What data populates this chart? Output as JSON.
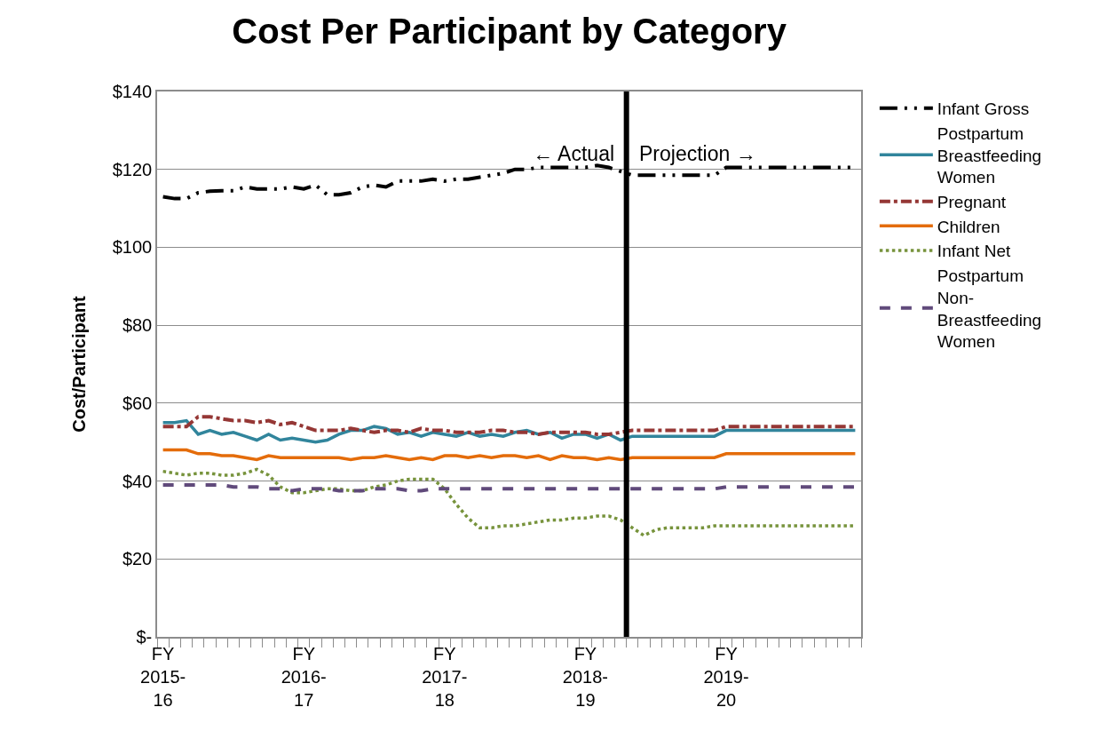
{
  "chart_data": {
    "type": "line",
    "title": "Cost Per Participant by Category",
    "ylabel": "Cost/Participant",
    "categories": [
      "FY\n2015-\n16",
      null,
      null,
      null,
      null,
      null,
      null,
      null,
      null,
      null,
      null,
      null,
      "FY\n2016-\n17",
      null,
      null,
      null,
      null,
      null,
      null,
      null,
      null,
      null,
      null,
      null,
      "FY\n2017-\n18",
      null,
      null,
      null,
      null,
      null,
      null,
      null,
      null,
      null,
      null,
      null,
      "FY\n2018-\n19",
      null,
      null,
      null,
      null,
      null,
      null,
      null,
      null,
      null,
      null,
      null,
      "FY\n2019-\n20",
      null,
      null,
      null,
      null,
      null,
      null,
      null,
      null,
      null,
      null,
      null
    ],
    "series": [
      {
        "name": "Infant Gross",
        "color": "#000000",
        "line_style": "long-dash-dot-dot",
        "values": [
          113,
          112.5,
          112.5,
          114,
          114.4,
          114.5,
          114.5,
          115.5,
          115,
          115,
          115,
          115.5,
          115,
          116,
          113.5,
          113.5,
          114,
          115.5,
          116,
          115.5,
          117,
          117,
          117,
          117.5,
          117,
          117.5,
          117.5,
          118,
          118.5,
          119,
          120,
          120,
          120.5,
          120.5,
          120.5,
          120.5,
          120.5,
          121,
          120.5,
          119.5,
          118.5,
          118.5,
          118.5,
          118.5,
          118.5,
          118.5,
          118.5,
          118.5,
          120.5,
          120.5,
          120.5,
          120.5,
          120.5,
          120.5,
          120.5,
          120.5,
          120.5,
          120.5,
          120.5,
          120.5
        ]
      },
      {
        "name": "Postpartum\nBreastfeeding\nWomen",
        "color": "#31859c",
        "line_style": "solid",
        "values": [
          55,
          55,
          55.5,
          52,
          53,
          52,
          52.5,
          51.5,
          50.5,
          52,
          50.5,
          51,
          50.5,
          50,
          50.5,
          52,
          53,
          53,
          54,
          53.5,
          52,
          52.5,
          51.5,
          52.5,
          52,
          51.5,
          52.5,
          51.5,
          52,
          51.5,
          52.5,
          53,
          52,
          52.5,
          51,
          52,
          52,
          51,
          52,
          50.5,
          51.5,
          51.5,
          51.5,
          51.5,
          51.5,
          51.5,
          51.5,
          51.5,
          53,
          53,
          53,
          53,
          53,
          53,
          53,
          53,
          53,
          53,
          53,
          53
        ]
      },
      {
        "name": "Pregnant",
        "color": "#953735",
        "line_style": "dash-dot",
        "values": [
          54,
          54,
          54,
          56.5,
          56.5,
          56,
          55.5,
          55.5,
          55,
          55.5,
          54.5,
          55,
          54,
          53,
          53,
          53,
          53.5,
          53,
          52.5,
          53,
          53,
          52.5,
          53.5,
          53,
          53,
          52.5,
          52.5,
          52.5,
          53,
          53,
          52.5,
          52.5,
          52,
          52.5,
          52.5,
          52.5,
          52.5,
          52,
          52,
          52.5,
          53,
          53,
          53,
          53,
          53,
          53,
          53,
          53,
          54,
          54,
          54,
          54,
          54,
          54,
          54,
          54,
          54,
          54,
          54,
          54
        ]
      },
      {
        "name": "Children",
        "color": "#e46c0a",
        "line_style": "solid",
        "values": [
          48,
          48,
          48,
          47,
          47,
          46.5,
          46.5,
          46,
          45.5,
          46.5,
          46,
          46,
          46,
          46,
          46,
          46,
          45.5,
          46,
          46,
          46.5,
          46,
          45.5,
          46,
          45.5,
          46.5,
          46.5,
          46,
          46.5,
          46,
          46.5,
          46.5,
          46,
          46.5,
          45.5,
          46.5,
          46,
          46,
          45.5,
          46,
          45.5,
          46,
          46,
          46,
          46,
          46,
          46,
          46,
          46,
          47,
          47,
          47,
          47,
          47,
          47,
          47,
          47,
          47,
          47,
          47,
          47
        ]
      },
      {
        "name": "Infant Net",
        "color": "#77933c",
        "line_style": "dotted",
        "values": [
          42.5,
          42,
          41.5,
          42,
          42,
          41.5,
          41.5,
          42,
          43,
          41.5,
          38.5,
          37,
          37,
          37.5,
          38,
          38,
          37.5,
          37.5,
          38.5,
          39,
          40,
          40.5,
          40.5,
          40.5,
          38,
          34,
          30.5,
          28,
          28,
          28.5,
          28.5,
          29,
          29.5,
          30,
          30,
          30.5,
          30.5,
          31,
          31,
          30,
          28,
          26,
          27.5,
          28,
          28,
          28,
          28,
          28.5,
          28.5,
          28.5,
          28.5,
          28.5,
          28.5,
          28.5,
          28.5,
          28.5,
          28.5,
          28.5,
          28.5,
          28.5
        ]
      },
      {
        "name": "Postpartum\nNon-\nBreastfeeding\nWomen",
        "color": "#604a7b",
        "line_style": "dashed",
        "values": [
          39,
          39,
          39,
          39,
          39,
          39,
          38.5,
          38.5,
          38.5,
          38,
          38,
          37.5,
          38,
          38,
          38,
          37.5,
          37.5,
          37.5,
          38,
          38,
          38,
          37.5,
          37.5,
          38,
          38,
          38,
          38,
          38,
          38,
          38,
          38,
          38,
          38,
          38,
          38,
          38,
          38,
          38,
          38,
          38,
          38,
          38,
          38,
          38,
          38,
          38,
          38,
          38,
          38.5,
          38.5,
          38.5,
          38.5,
          38.5,
          38.5,
          38.5,
          38.5,
          38.5,
          38.5,
          38.5,
          38.5
        ]
      }
    ],
    "ylim": [
      0,
      140
    ],
    "yticks": [
      {
        "value": 0,
        "label": "$-"
      },
      {
        "value": 20,
        "label": "$20"
      },
      {
        "value": 40,
        "label": "$40"
      },
      {
        "value": 60,
        "label": "$60"
      },
      {
        "value": 80,
        "label": "$80"
      },
      {
        "value": 100,
        "label": "$100"
      },
      {
        "value": 120,
        "label": "$120"
      },
      {
        "value": 140,
        "label": "$140"
      }
    ],
    "annotations": [
      "← Actual",
      "Projection →"
    ],
    "grid": "y",
    "legend": "right",
    "marker": "none"
  }
}
